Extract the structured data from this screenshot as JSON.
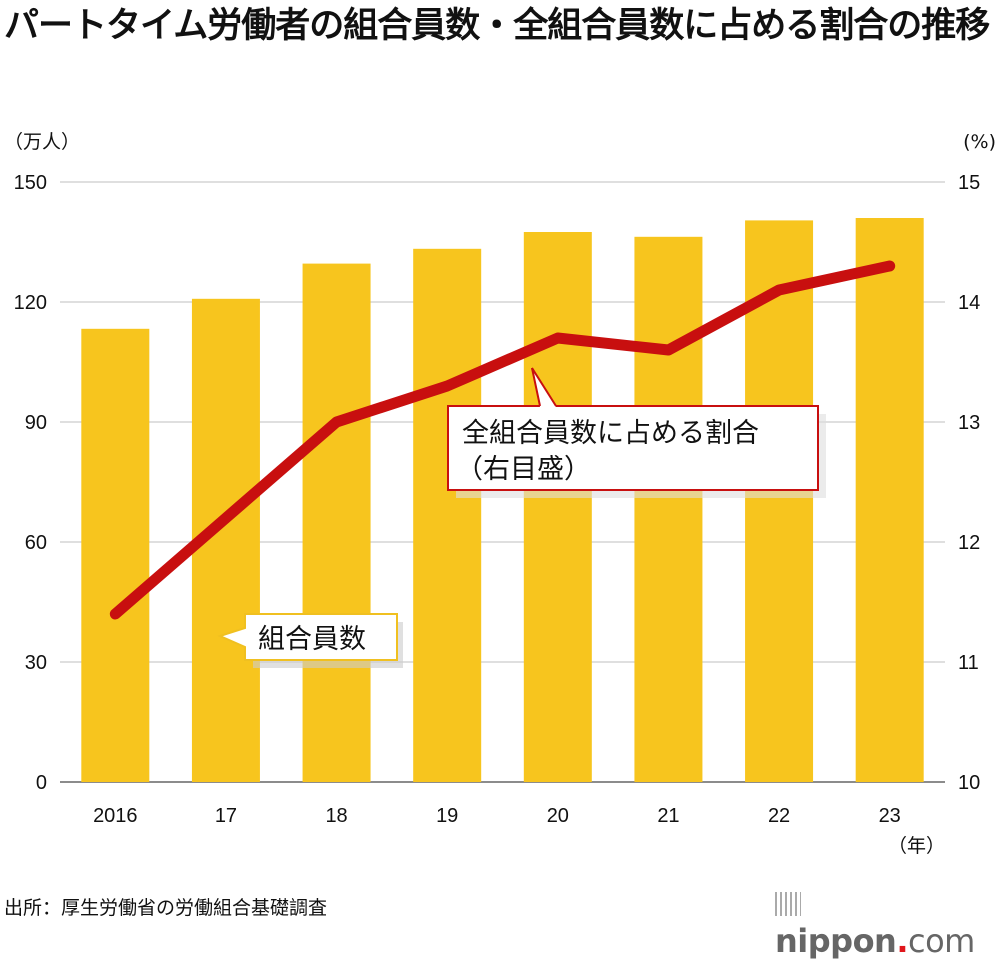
{
  "title": "パートタイム労働者の組合員数・全組合員数に占める割合の推移",
  "source": "出所：厚生労働省の労働組合基礎調査",
  "logo": {
    "name": "nippon",
    "dot": ".",
    "suffix": "com"
  },
  "colors": {
    "bar": "#f7c51e",
    "line": "#c80f0f",
    "grid": "#cccccc"
  },
  "chart_data": {
    "type": "bar+line",
    "categories": [
      "2016",
      "17",
      "18",
      "19",
      "20",
      "21",
      "22",
      "23"
    ],
    "x_unit": "（年）",
    "left_axis": {
      "unit": "（万人）",
      "range": [
        0,
        150
      ],
      "ticks": [
        "0",
        "30",
        "60",
        "90",
        "120",
        "150"
      ]
    },
    "right_axis": {
      "unit": "(%)",
      "range": [
        10,
        15
      ],
      "ticks": [
        "10",
        "11",
        "12",
        "13",
        "14",
        "15"
      ]
    },
    "grid": true,
    "series": [
      {
        "name": "組合員数",
        "type": "bar",
        "axis": "left",
        "values": [
          113.3,
          120.8,
          129.6,
          133.3,
          137.5,
          136.3,
          140.4,
          141.0
        ]
      },
      {
        "name": "全組合員数に占める割合",
        "name_suffix": "（右目盛）",
        "type": "line",
        "axis": "right",
        "values": [
          11.4,
          12.2,
          13.0,
          13.3,
          13.7,
          13.6,
          14.1,
          14.3
        ]
      }
    ]
  }
}
